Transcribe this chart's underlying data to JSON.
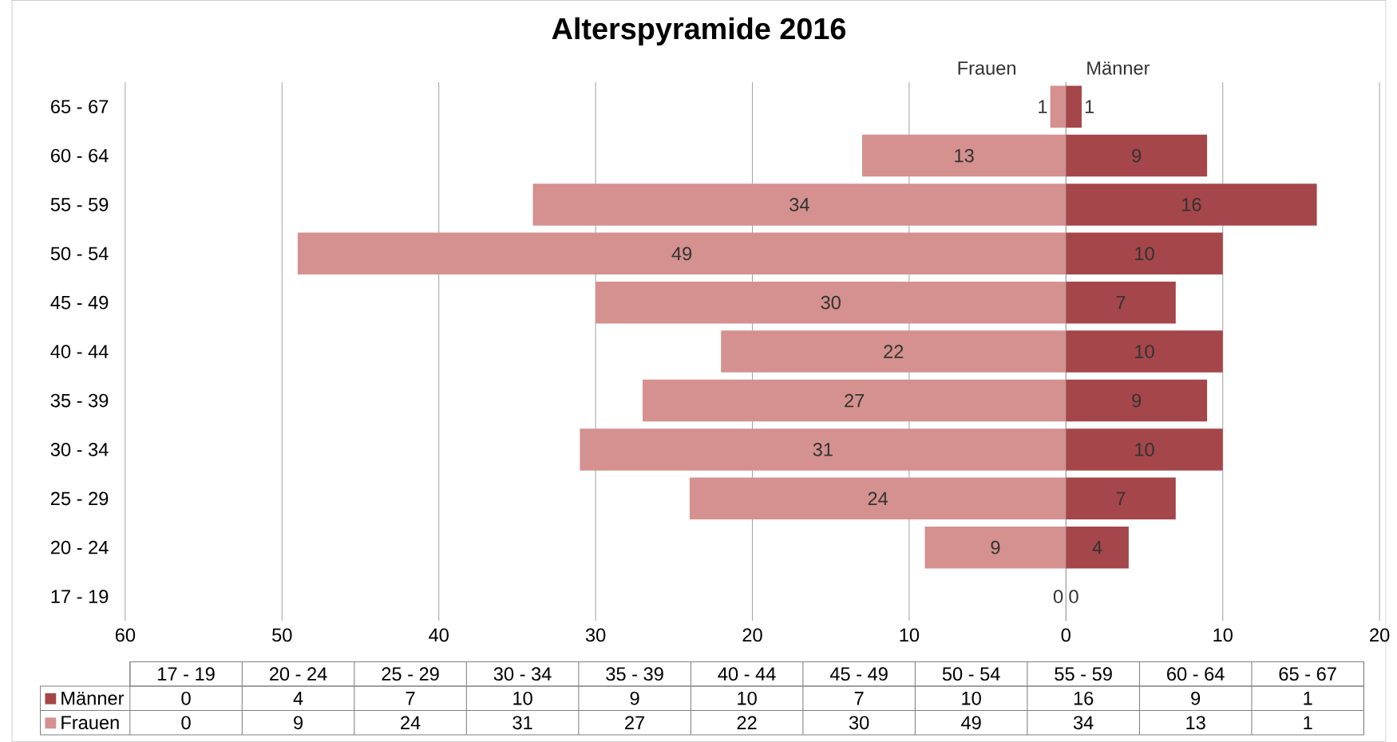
{
  "chart_data": [
    {
      "type": "bar",
      "orientation": "horizontal",
      "title": "Alterspyramide 2016",
      "categories": [
        "65 - 67",
        "60 - 64",
        "55 - 59",
        "50 - 54",
        "45 - 49",
        "40 - 44",
        "35 - 39",
        "30 - 34",
        "25 - 29",
        "20 - 24",
        "17 - 19"
      ],
      "series": [
        {
          "name": "Frauen",
          "color": "#d4918f",
          "values": [
            1,
            13,
            34,
            49,
            30,
            22,
            27,
            31,
            24,
            9,
            0
          ],
          "value_labels": [
            "1",
            "13",
            "34",
            "49",
            "30",
            "22",
            "27",
            "31",
            "24",
            "9",
            "0"
          ]
        }
      ],
      "xlim": [
        60,
        0
      ],
      "xticks": [
        60,
        50,
        40,
        30,
        20,
        10,
        0
      ],
      "grid": "x",
      "legend": "bottom left",
      "annotations": [
        "Frauen"
      ]
    },
    {
      "type": "bar",
      "orientation": "horizontal",
      "categories": [
        "65 - 67",
        "60 - 64",
        "55 - 59",
        "50 - 54",
        "45 - 49",
        "40 - 44",
        "35 - 39",
        "30 - 34",
        "25 - 29",
        "20 - 24",
        "17 - 19"
      ],
      "series": [
        {
          "name": "Männer",
          "color": "#a5464a",
          "values": [
            1,
            9,
            16,
            10,
            7,
            10,
            9,
            10,
            7,
            4,
            0
          ],
          "value_labels": [
            "1",
            "9",
            "16",
            "10",
            "7",
            "10",
            "9",
            "10",
            "7",
            "4",
            "0"
          ]
        }
      ],
      "xlim": [
        0,
        20
      ],
      "xticks": [
        {
          "value": 0,
          "label": null
        },
        10,
        20
      ],
      "tick_labels": "x",
      "grid": "x",
      "legend": "bottom left",
      "annotations": [
        "Männer"
      ]
    }
  ]
}
